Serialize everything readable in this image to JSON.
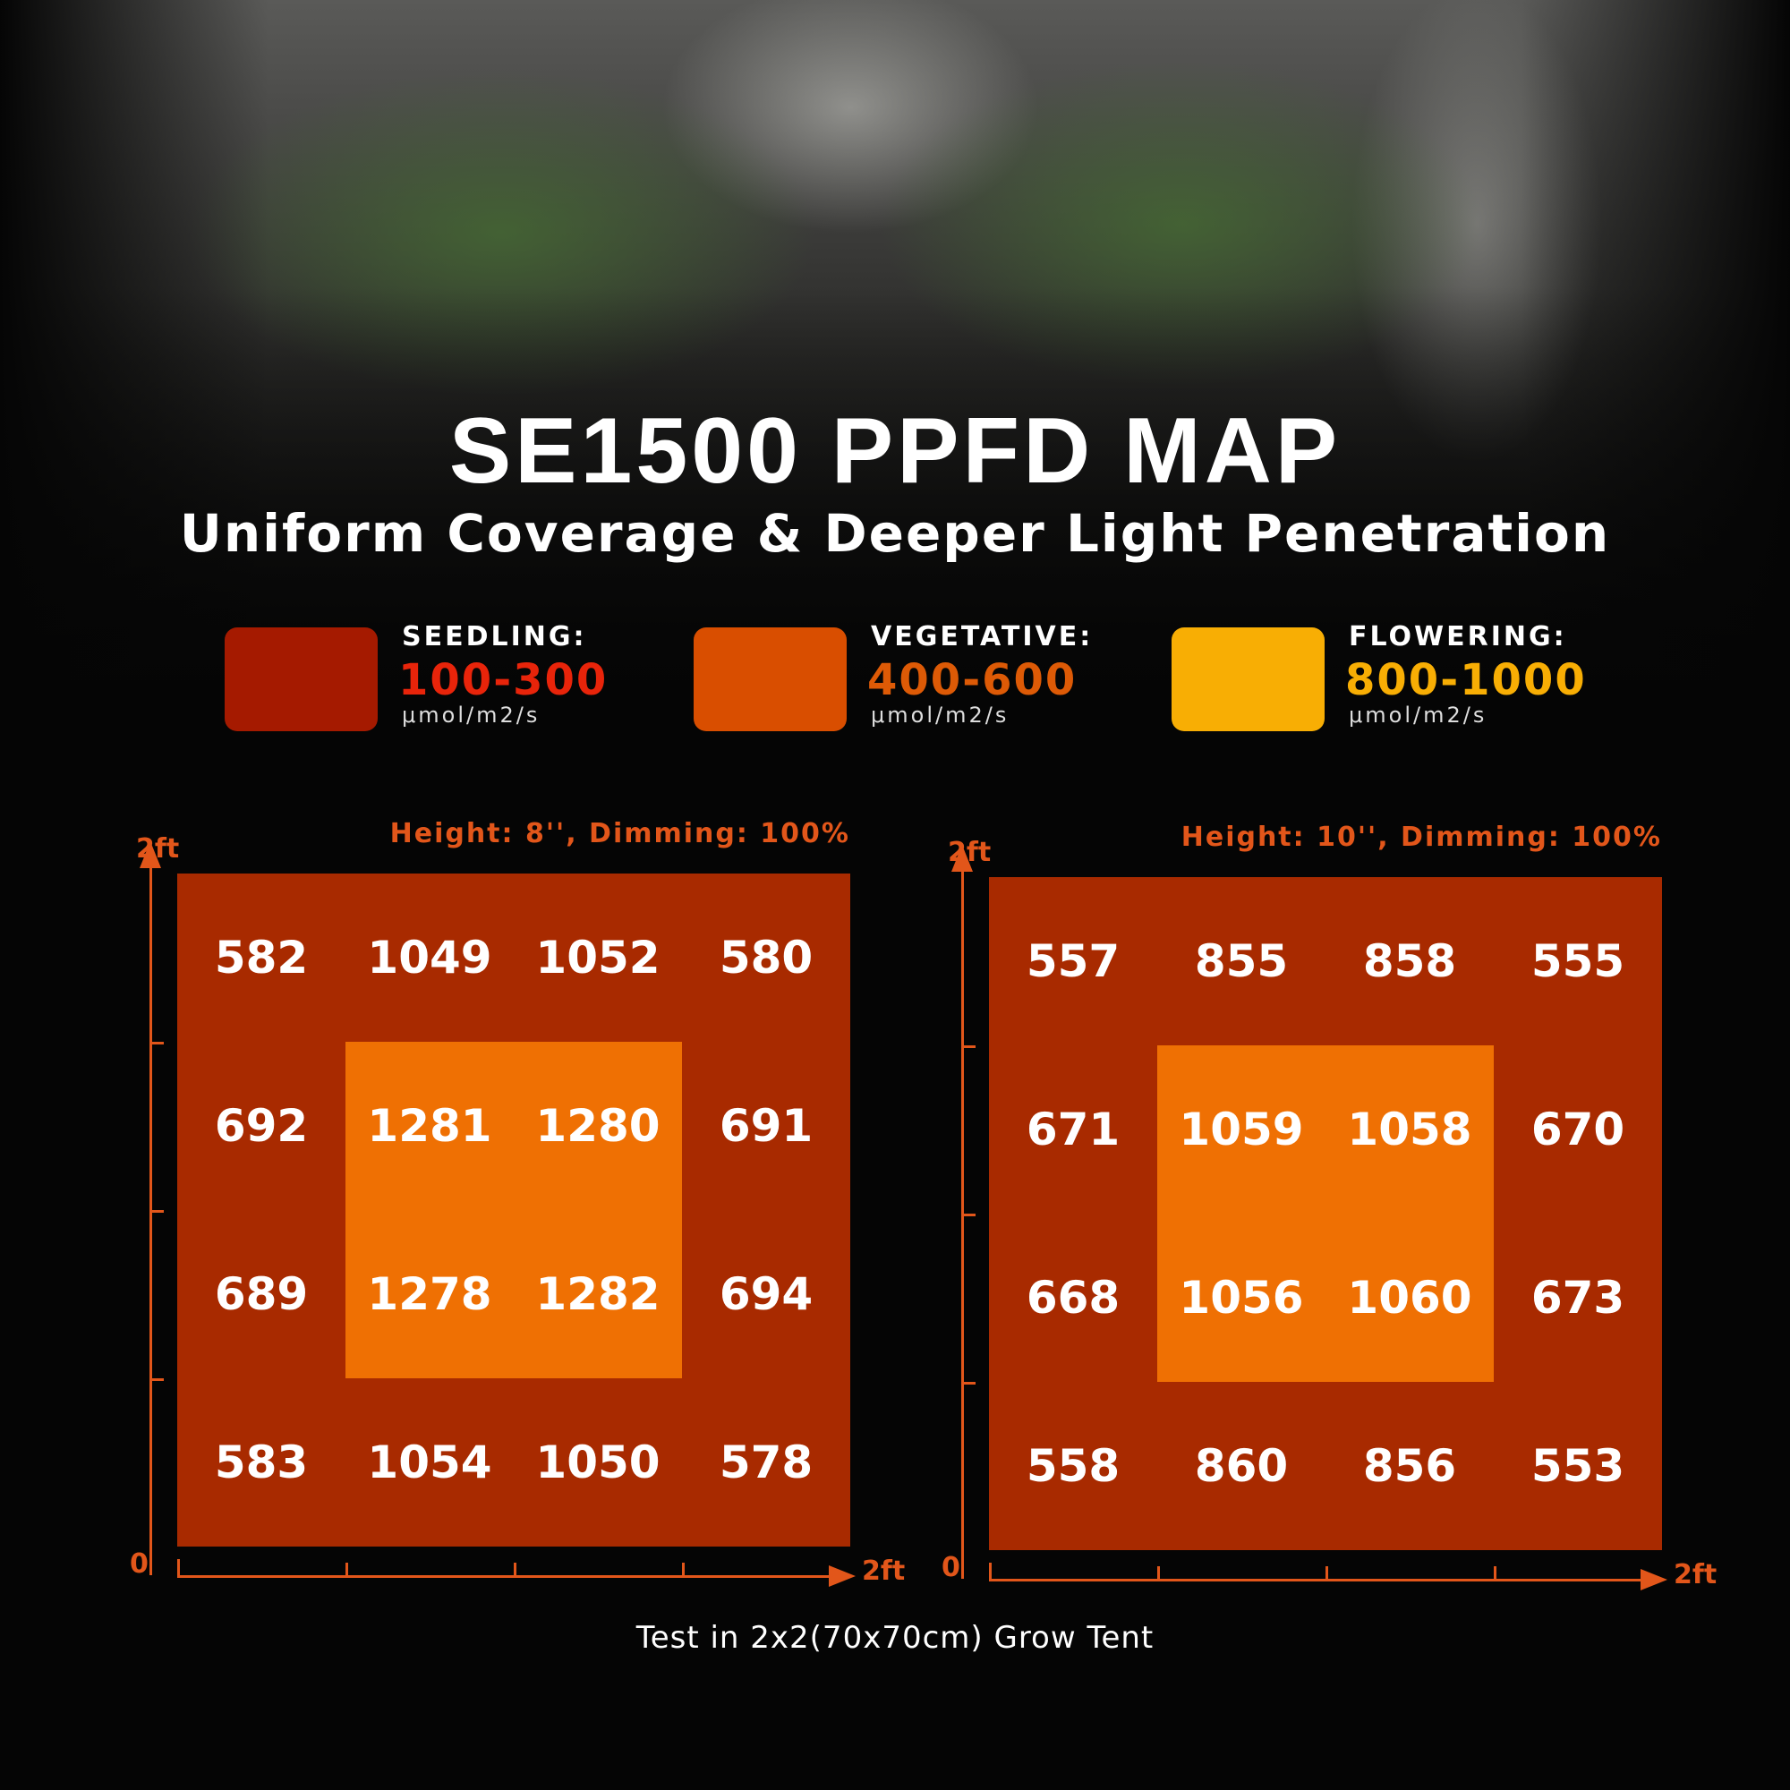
{
  "title": "SE1500 PPFD MAP",
  "subtitle": "Uniform Coverage & Deeper Light Penetration",
  "legend": [
    {
      "name": "SEEDLING:",
      "range": "100-300",
      "unit": "μmol/m2/s",
      "swatch": "#a51a00",
      "text_color": "#e8240a"
    },
    {
      "name": "VEGETATIVE:",
      "range": "400-600",
      "unit": "μmol/m2/s",
      "swatch": "#d94e00",
      "text_color": "#dd5a06"
    },
    {
      "name": "FLOWERING:",
      "range": "800-1000",
      "unit": "μmol/m2/s",
      "swatch": "#f8ae04",
      "text_color": "#f8ae04"
    }
  ],
  "chart_data": [
    {
      "type": "heatmap",
      "title": "Height: 8'', Dimming: 100%",
      "x_axis": {
        "start": "0",
        "end": "2ft"
      },
      "y_axis": {
        "start": "0",
        "end": "2ft"
      },
      "rows": [
        [
          582,
          1049,
          1052,
          580
        ],
        [
          692,
          1281,
          1280,
          691
        ],
        [
          689,
          1278,
          1282,
          694
        ],
        [
          583,
          1054,
          1050,
          578
        ]
      ]
    },
    {
      "type": "heatmap",
      "title": "Height: 10'', Dimming: 100%",
      "x_axis": {
        "start": "0",
        "end": "2ft"
      },
      "y_axis": {
        "start": "0",
        "end": "2ft"
      },
      "rows": [
        [
          557,
          855,
          858,
          555
        ],
        [
          671,
          1059,
          1058,
          670
        ],
        [
          668,
          1056,
          1060,
          673
        ],
        [
          558,
          860,
          856,
          553
        ]
      ]
    }
  ],
  "footer": "Test in 2x2(70x70cm) Grow Tent"
}
